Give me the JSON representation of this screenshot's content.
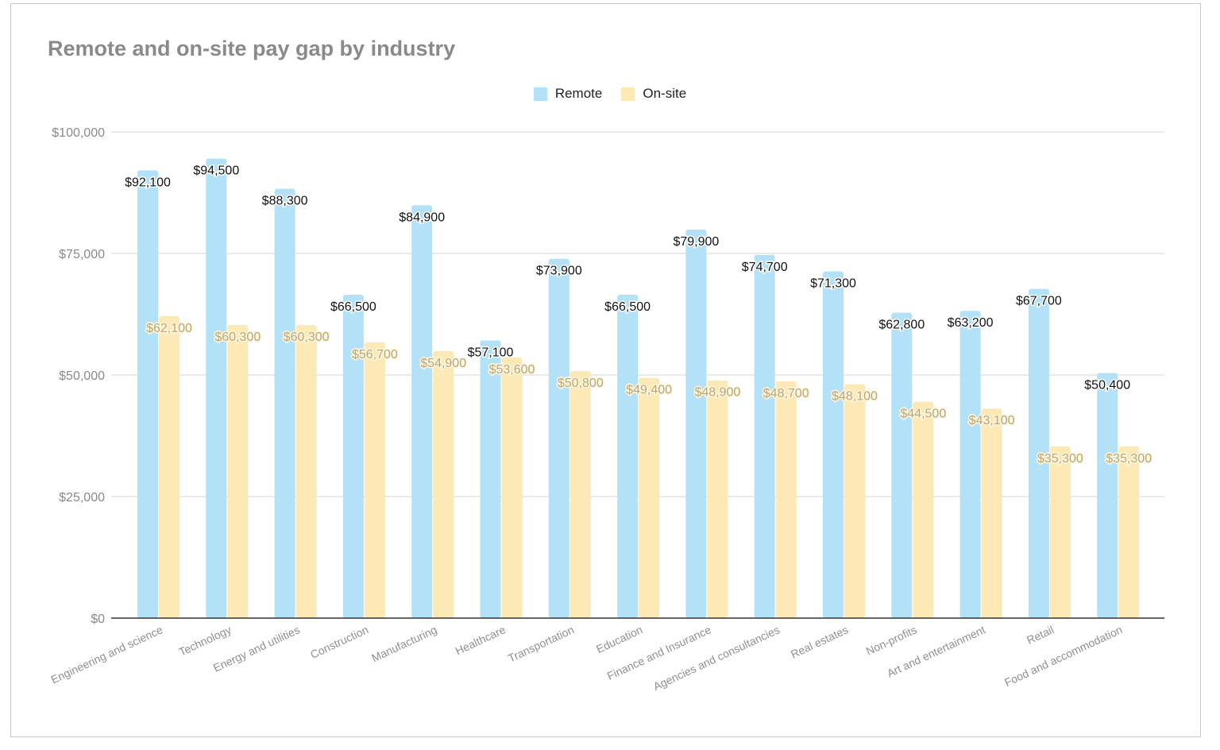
{
  "chart_data": {
    "type": "bar",
    "title": "Remote and on-site pay gap by industry",
    "categories": [
      "Engineering and science",
      "Technology",
      "Energy and utilities",
      "Construction",
      "Manufacturing",
      "Healthcare",
      "Transportation",
      "Education",
      "Finance and Insurance",
      "Agencies and consultancies",
      "Real estates",
      "Non-profits",
      "Art and entertainment",
      "Retail",
      "Food and accommodation"
    ],
    "series": [
      {
        "name": "Remote",
        "color": "#b3e1f7",
        "values": [
          92100,
          94500,
          88300,
          66500,
          84900,
          57100,
          73900,
          66500,
          79900,
          74700,
          71300,
          62800,
          63200,
          67700,
          50400
        ],
        "labels": [
          "$92,100",
          "$94,500",
          "$88,300",
          "$66,500",
          "$84,900",
          "$57,100",
          "$73,900",
          "$66,500",
          "$79,900",
          "$74,700",
          "$71,300",
          "$62,800",
          "$63,200",
          "$67,700",
          "$50,400"
        ]
      },
      {
        "name": "On-site",
        "color": "#fde9b5",
        "values": [
          62100,
          60300,
          60300,
          56700,
          54900,
          53600,
          50800,
          49400,
          48900,
          48700,
          48100,
          44500,
          43100,
          35300,
          35300
        ],
        "labels": [
          "$62,100",
          "$60,300",
          "$60,300",
          "$56,700",
          "$54,900",
          "$53,600",
          "$50,800",
          "$49,400",
          "$48,900",
          "$48,700",
          "$48,100",
          "$44,500",
          "$43,100",
          "$35,300",
          "$35,300"
        ]
      }
    ],
    "yticks": [
      "$0",
      "$25,000",
      "$50,000",
      "$75,000",
      "$100,000"
    ],
    "ytick_values": [
      0,
      25000,
      50000,
      75000,
      100000
    ],
    "ylim": [
      0,
      100000
    ],
    "grid": true,
    "legend_position": "top"
  }
}
